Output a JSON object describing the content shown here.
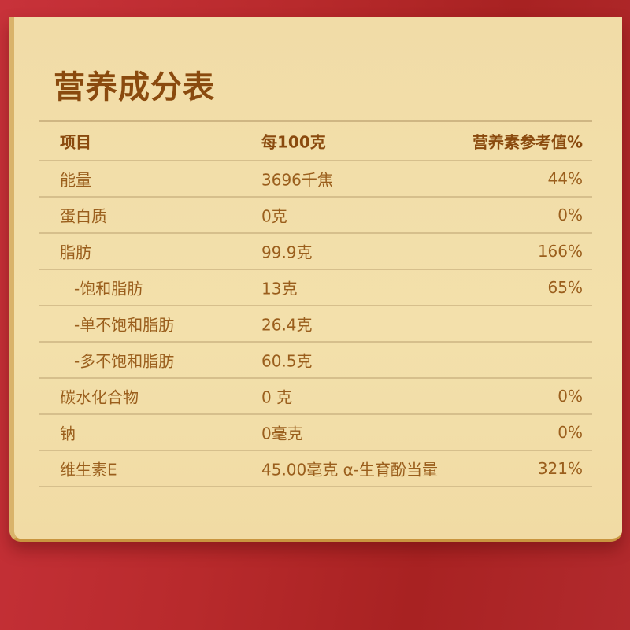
{
  "title": "营养成分表",
  "header": [
    "项目",
    "每100克",
    "营养素参考值%"
  ],
  "rows": [
    {
      "item": "能量",
      "per100g": "3696千焦",
      "nrv": "44%"
    },
    {
      "item": "蛋白质",
      "per100g": "0克",
      "nrv": "0%"
    },
    {
      "item": "脂肪",
      "per100g": "99.9克",
      "nrv": "166%"
    },
    {
      "item": "-饱和脂肪",
      "per100g": "13克",
      "nrv": "65%",
      "sub": true
    },
    {
      "item": "-单不饱和脂肪",
      "per100g": "26.4克",
      "nrv": "",
      "sub": true
    },
    {
      "item": "-多不饱和脂肪",
      "per100g": "60.5克",
      "nrv": "",
      "sub": true
    },
    {
      "item": "碳水化合物",
      "per100g": "0 克",
      "nrv": "0%"
    },
    {
      "item": "钠",
      "per100g": "0毫克",
      "nrv": "0%"
    },
    {
      "item": "维生素E",
      "per100g": "45.00毫克 α-生育酚当量",
      "nrv": "321%"
    }
  ],
  "colors": {
    "background": "#b82a2c",
    "panel": "#f3e0ab",
    "title": "#8a4a0e",
    "text": "#9a5e1c"
  }
}
